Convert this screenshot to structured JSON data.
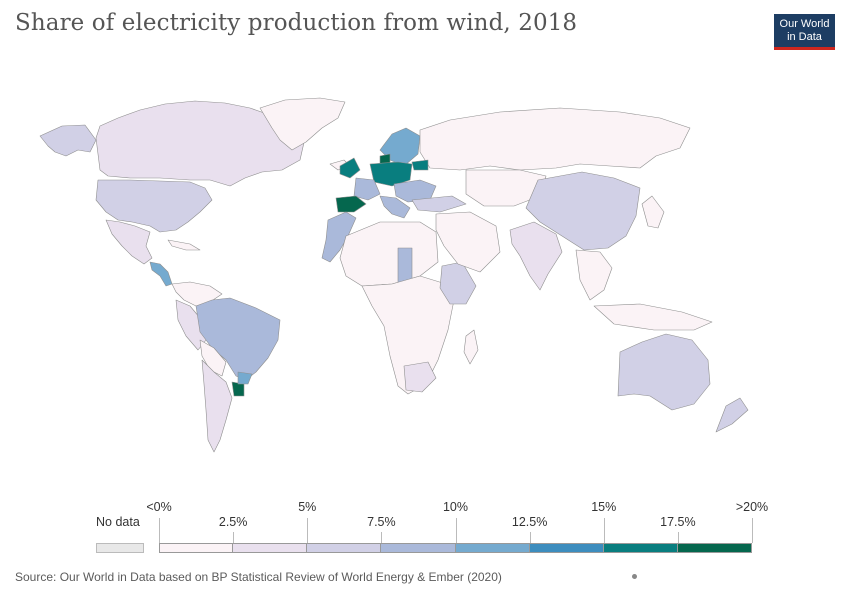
{
  "title": "Share of electricity production from wind, 2018",
  "logo": {
    "line1": "Our World",
    "line2": "in Data"
  },
  "legend": {
    "no_data_label": "No data",
    "upper_ticks": [
      "<0%",
      "5%",
      "10%",
      "15%",
      ">20%"
    ],
    "lower_ticks": [
      "2.5%",
      "7.5%",
      "12.5%",
      "17.5%"
    ],
    "bin_colors": [
      "#fbf3f6",
      "#e9e0ee",
      "#d1d0e6",
      "#aab9da",
      "#75aacf",
      "#3d8dbe",
      "#097e7f",
      "#05674e"
    ],
    "no_data_color": "#e8e8e8"
  },
  "source": "Source: Our World in Data based on BP Statistical Review of World Energy & Ember (2020)"
}
